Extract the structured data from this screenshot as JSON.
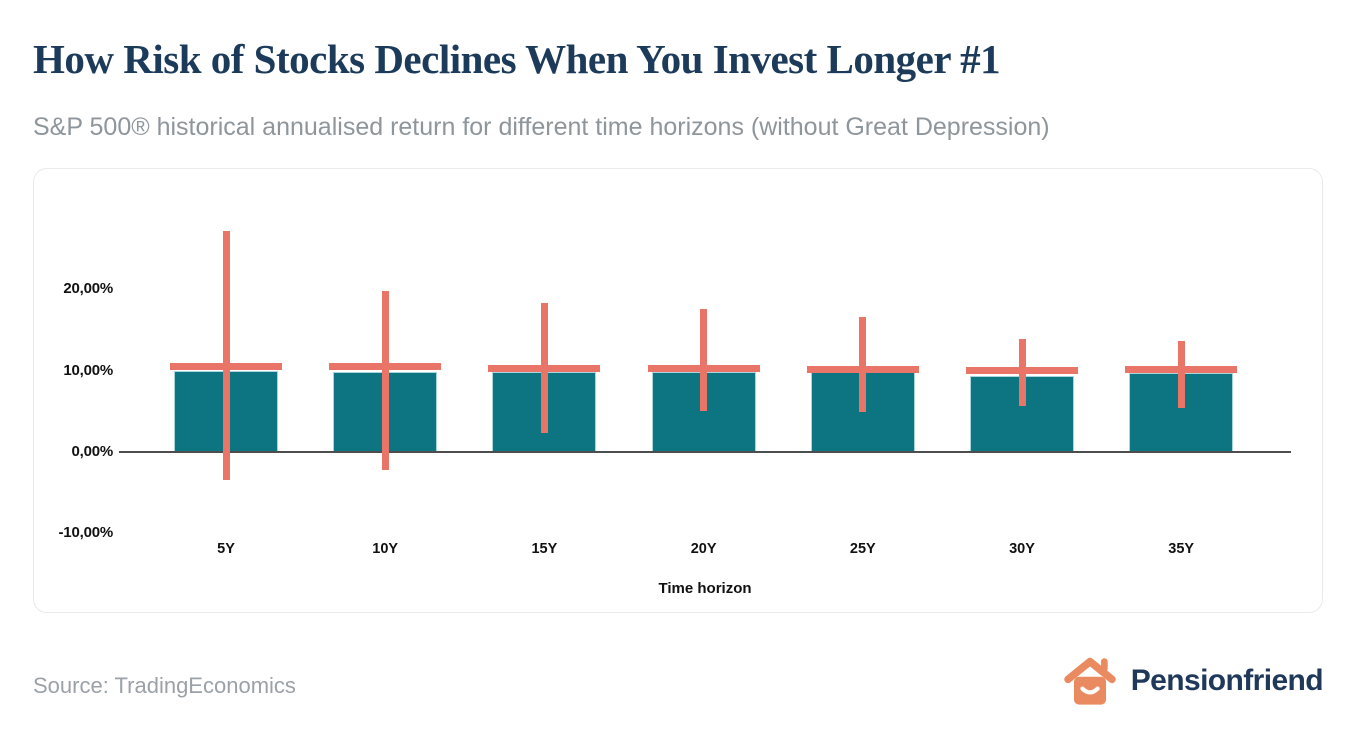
{
  "header": {
    "title": "How Risk of Stocks Declines When You Invest Longer #1",
    "subtitle": "S&P 500® historical annualised return for different time horizons (without Great Depression)"
  },
  "footer": {
    "source": "Source: TradingEconomics",
    "brand": "Pensionfriend",
    "brand_icon": "house-smile-icon"
  },
  "colors": {
    "title": "#1c3b5a",
    "subtitle": "#8e969c",
    "bar": "#0d7581",
    "bar_edge": "#a9d5dc",
    "whisker": "#e87567",
    "axis": "#4d4d4d",
    "tick": "#111111",
    "source": "#9ba1a8",
    "brand_text": "#20395a",
    "brand_icon": "#ea8a60",
    "card_border": "#e9e9e9"
  },
  "chart_data": {
    "type": "bar",
    "categories": [
      "5Y",
      "10Y",
      "15Y",
      "20Y",
      "25Y",
      "30Y",
      "35Y"
    ],
    "series": [
      {
        "name": "annualised_return_bar",
        "values": [
          10.0,
          9.9,
          9.9,
          9.9,
          9.8,
          9.4,
          9.7
        ]
      },
      {
        "name": "average_marker",
        "values": [
          10.5,
          10.5,
          10.3,
          10.3,
          10.1,
          10.0,
          10.2
        ]
      },
      {
        "name": "range_max",
        "values": [
          27.2,
          19.8,
          18.3,
          17.6,
          16.6,
          13.9,
          13.7
        ]
      },
      {
        "name": "range_min",
        "values": [
          -3.5,
          -2.2,
          2.3,
          5.0,
          4.9,
          5.6,
          5.4
        ]
      }
    ],
    "xlabel": "Time horizon",
    "ylabel": "",
    "yticks": [
      {
        "value": 20,
        "label": "20,00%"
      },
      {
        "value": 10,
        "label": "10,00%"
      },
      {
        "value": 0,
        "label": "0,00%"
      },
      {
        "value": -10,
        "label": "-10,00%"
      }
    ],
    "ylim": [
      -13,
      30
    ],
    "grid": false,
    "legend": null
  }
}
